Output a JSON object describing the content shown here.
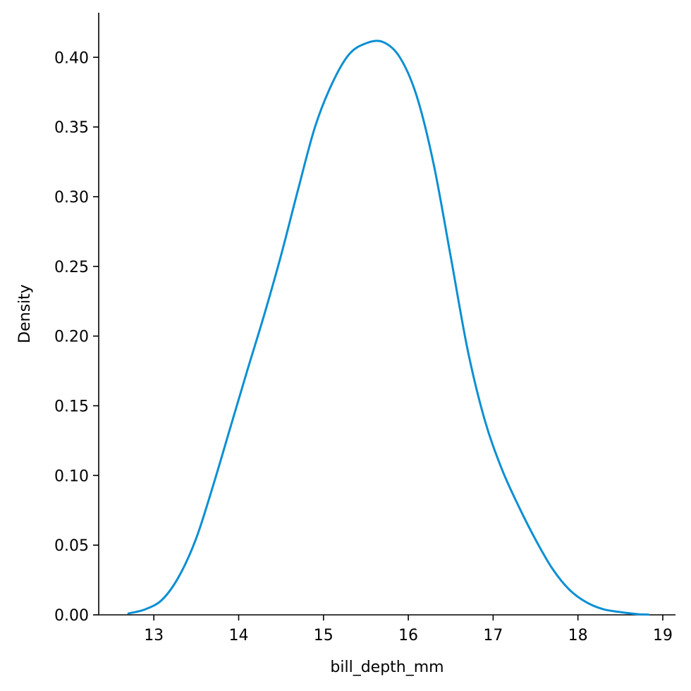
{
  "chart_data": {
    "type": "line",
    "title": "",
    "xlabel": "bill_depth_mm",
    "ylabel": "Density",
    "xlim": [
      12.35,
      19.15
    ],
    "ylim": [
      0.0,
      0.432
    ],
    "x_ticks": [
      13,
      14,
      15,
      16,
      17,
      18,
      19
    ],
    "x_tick_labels": [
      "13",
      "14",
      "15",
      "16",
      "17",
      "18",
      "19"
    ],
    "y_ticks": [
      0.0,
      0.05,
      0.1,
      0.15,
      0.2,
      0.25,
      0.3,
      0.35,
      0.4
    ],
    "y_tick_labels": [
      "0.00",
      "0.05",
      "0.10",
      "0.15",
      "0.20",
      "0.25",
      "0.30",
      "0.35",
      "0.40"
    ],
    "grid": false,
    "legend": false,
    "color": "#0a8fd3",
    "series": [
      {
        "x": [
          12.7,
          12.9,
          13.1,
          13.3,
          13.5,
          13.7,
          13.9,
          14.1,
          14.3,
          14.5,
          14.7,
          14.9,
          15.1,
          15.3,
          15.5,
          15.7,
          15.9,
          16.1,
          16.3,
          16.5,
          16.7,
          16.9,
          17.1,
          17.3,
          17.5,
          17.7,
          17.9,
          18.1,
          18.3,
          18.5,
          18.7,
          18.83
        ],
        "y": [
          0.001,
          0.004,
          0.011,
          0.028,
          0.055,
          0.093,
          0.134,
          0.175,
          0.215,
          0.258,
          0.305,
          0.35,
          0.381,
          0.402,
          0.41,
          0.411,
          0.4,
          0.372,
          0.323,
          0.257,
          0.19,
          0.14,
          0.105,
          0.078,
          0.054,
          0.033,
          0.018,
          0.009,
          0.004,
          0.002,
          0.0005,
          0.0002
        ]
      }
    ]
  }
}
